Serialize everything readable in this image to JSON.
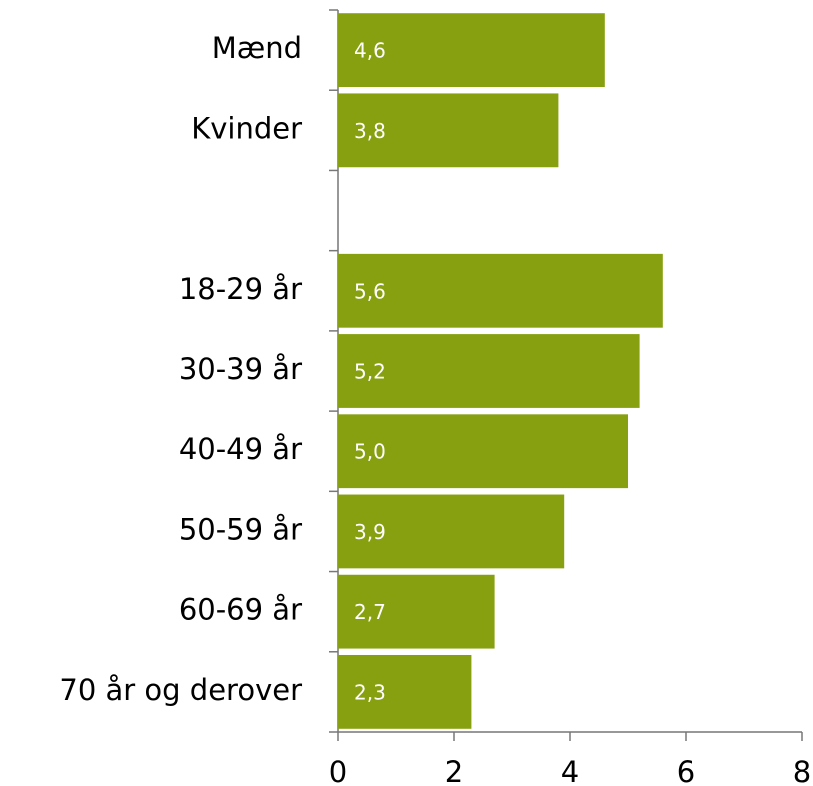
{
  "chart_data": {
    "type": "bar",
    "orientation": "horizontal",
    "categories": [
      "Mænd",
      "Kvinder",
      null,
      "18-29 år",
      "30-39 år",
      "40-49 år",
      "50-59 år",
      "60-69 år",
      "70 år og derover"
    ],
    "values": [
      4.6,
      3.8,
      null,
      5.6,
      5.2,
      5.0,
      3.9,
      2.7,
      2.3
    ],
    "value_labels": [
      "4,6",
      "3,8",
      null,
      "5,6",
      "5,2",
      "5,0",
      "3,9",
      "2,7",
      "2,3"
    ],
    "color": "#87a00f",
    "xlim": [
      0,
      8
    ],
    "xticks": [
      0,
      2,
      4,
      6,
      8
    ]
  }
}
